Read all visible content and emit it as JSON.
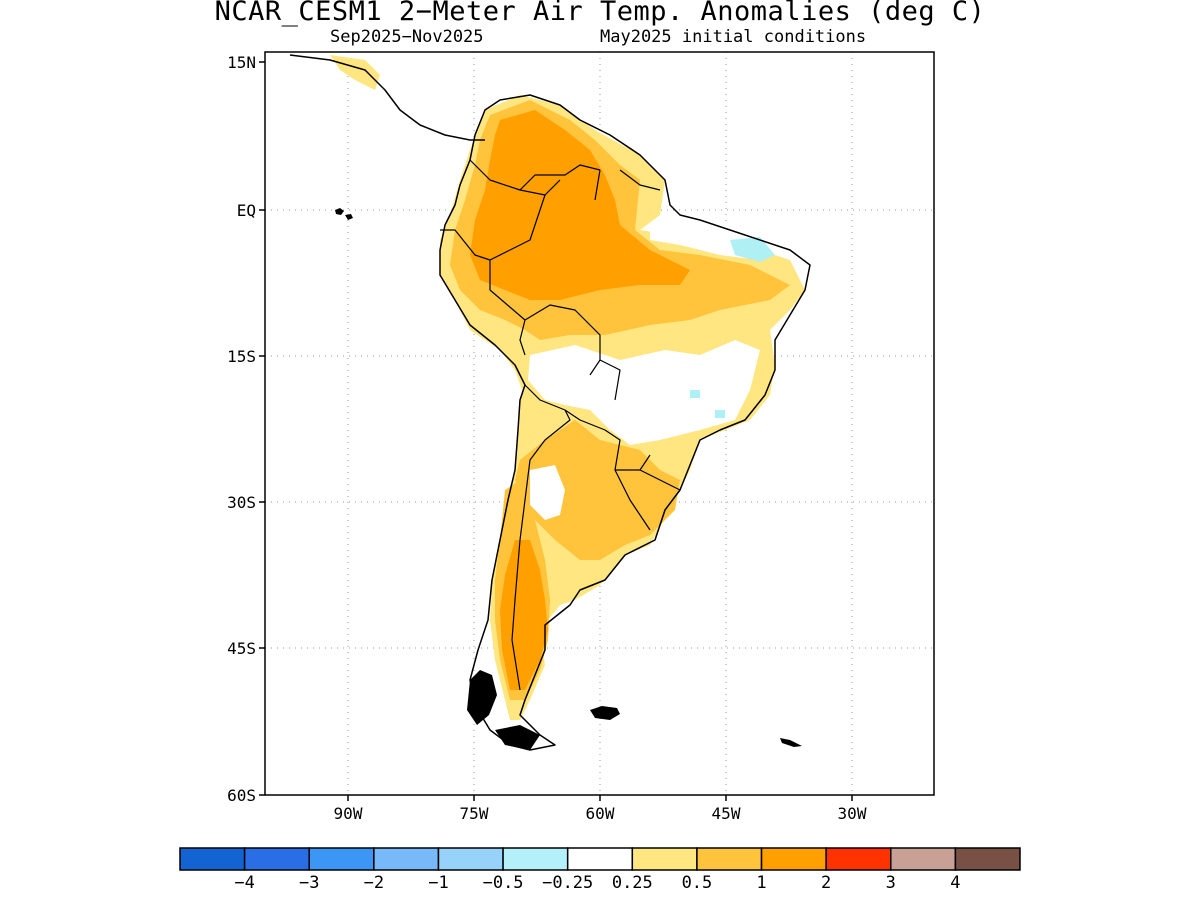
{
  "header": {
    "title": "NCAR_CESM1 2−Meter Air Temp. Anomalies (deg C)",
    "period": "Sep2025−Nov2025",
    "initial_conditions": "May2025 initial conditions"
  },
  "map": {
    "region": "South America",
    "lat_labels": [
      "15N",
      "EQ",
      "15S",
      "30S",
      "45S",
      "60S"
    ],
    "lon_labels": [
      "90W",
      "75W",
      "60W",
      "45W",
      "30W"
    ],
    "grid_style": "dotted",
    "colors": {
      "anom_0_25_to_0_5": "#ffe680",
      "anom_0_5_to_1": "#ffc33c",
      "anom_1_to_2": "#ffa000",
      "anom_neg_0_5_to_neg_0_25": "#aff0f5"
    }
  },
  "legend": {
    "swatches": [
      {
        "color": "#1463d2"
      },
      {
        "color": "#2a6ee6"
      },
      {
        "color": "#3c96f5"
      },
      {
        "color": "#78b9fa"
      },
      {
        "color": "#96d2fa"
      },
      {
        "color": "#b4f0fa"
      },
      {
        "color": "#ffffff"
      },
      {
        "color": "#ffe680"
      },
      {
        "color": "#ffc33c"
      },
      {
        "color": "#ffa000"
      },
      {
        "color": "#ff3200"
      },
      {
        "color": "#c8a096"
      },
      {
        "color": "#785046"
      }
    ],
    "labels": [
      "−4",
      "−3",
      "−2",
      "−1",
      "−0.5",
      "−0.25",
      "0.25",
      "0.5",
      "1",
      "2",
      "3",
      "4"
    ]
  }
}
